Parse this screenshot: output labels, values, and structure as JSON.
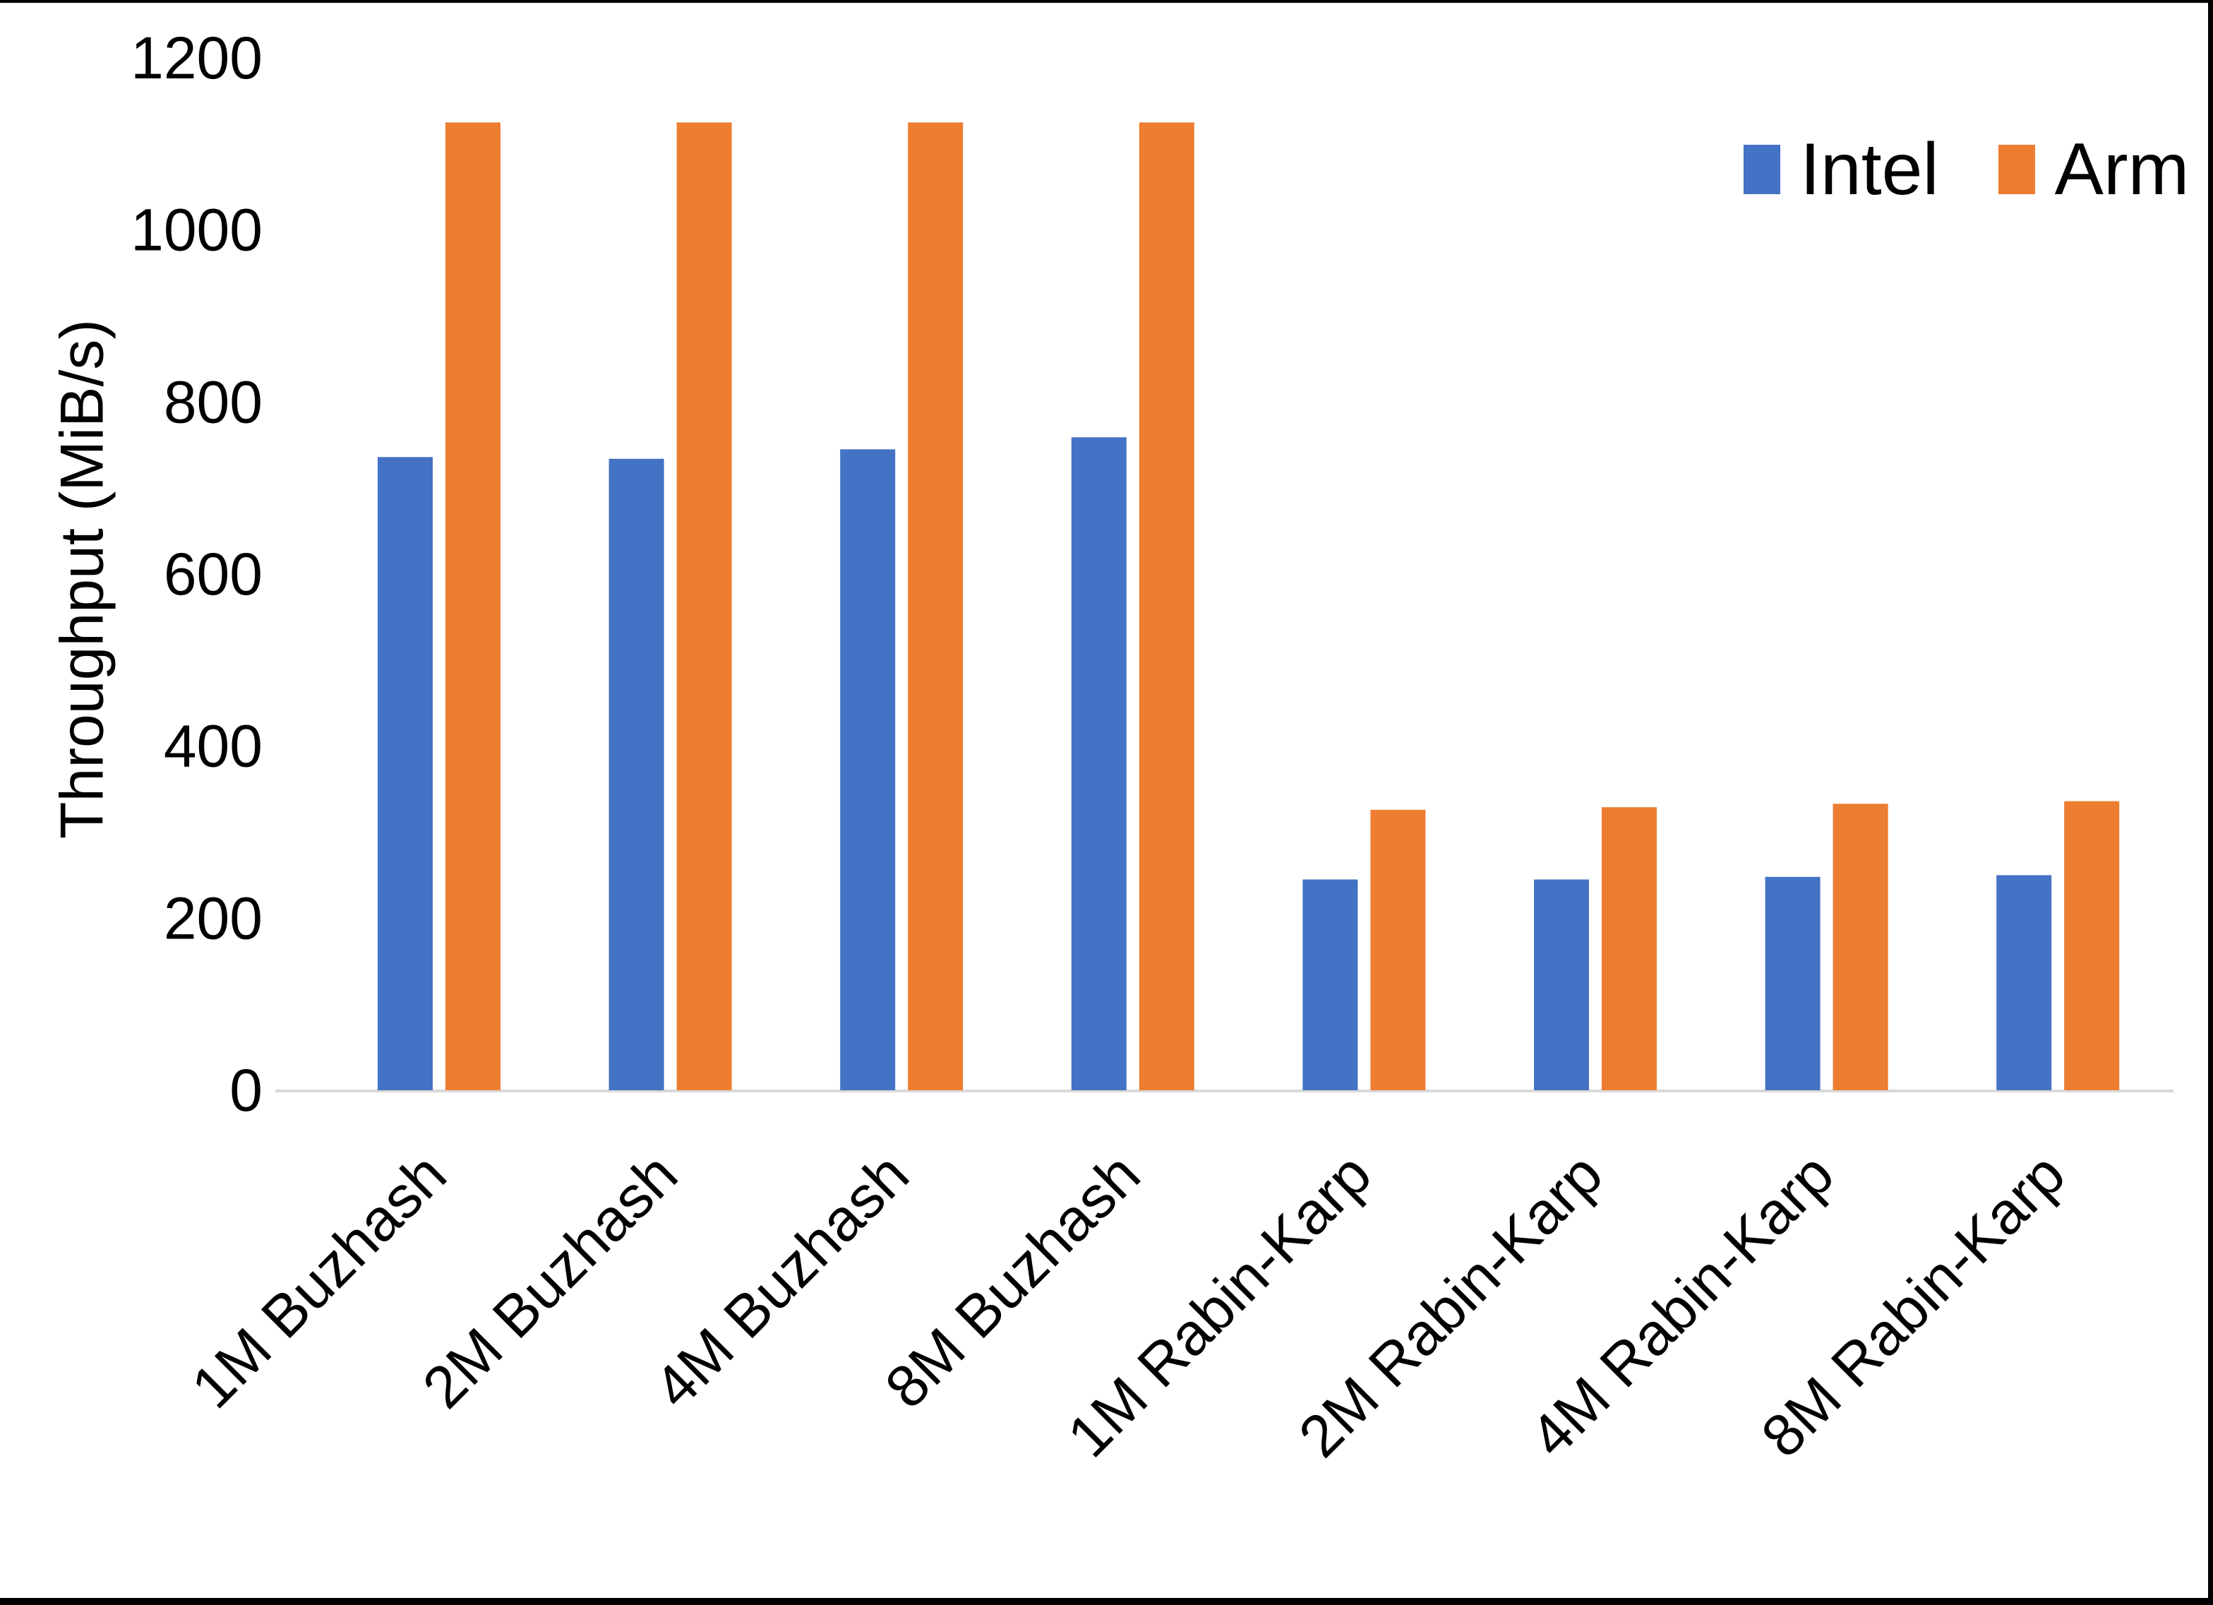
{
  "figure": {
    "background": "#ffffff",
    "frame_color": "#000000"
  },
  "chart_data": {
    "type": "bar",
    "title": "",
    "xlabel": "",
    "ylabel": "Throughput (MiB/s)",
    "categories": [
      "1M Buzhash",
      "2M Buzhash",
      "4M Buzhash",
      "8M Buzhash",
      "1M Rabin-Karp",
      "2M Rabin-Karp",
      "4M Rabin-Karp",
      "8M Rabin-Karp"
    ],
    "series": [
      {
        "name": "Intel",
        "color": "#4472C4",
        "values": [
          736,
          734,
          745,
          759,
          245,
          245,
          248,
          250
        ]
      },
      {
        "name": "Arm",
        "color": "#ED7D31",
        "values": [
          1125,
          1125,
          1125,
          1125,
          326,
          329,
          333,
          336
        ]
      }
    ],
    "ylim": [
      0,
      1200
    ],
    "yticks": [
      0,
      200,
      400,
      600,
      800,
      1000,
      1200
    ],
    "grid": false,
    "legend_position": "top-right",
    "axis_line_color": "#D9D9D9",
    "text_color": "#000000"
  }
}
